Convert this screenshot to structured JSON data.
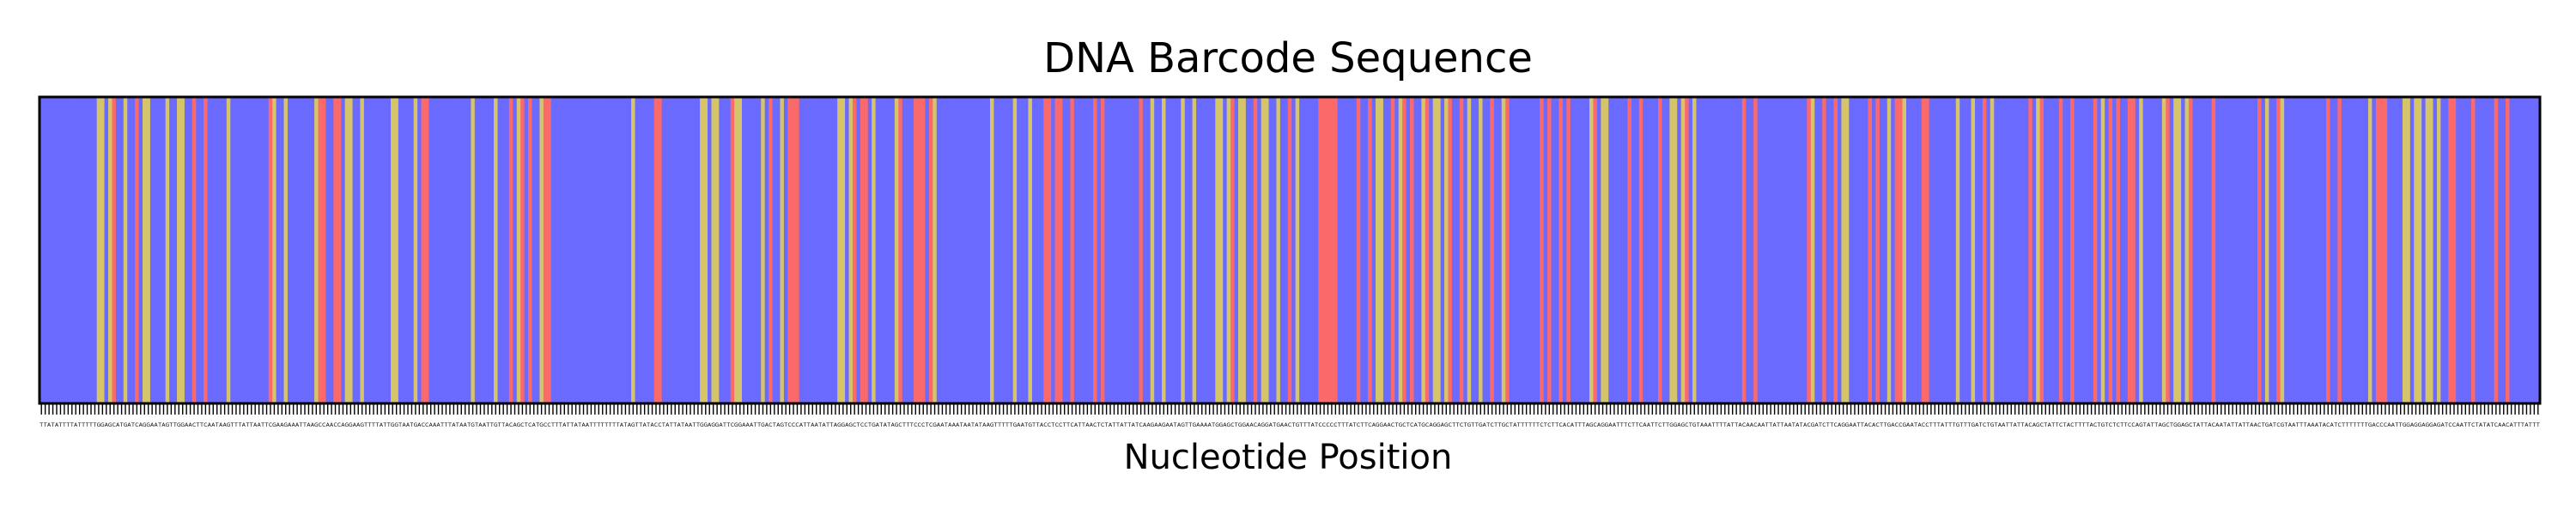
{
  "chart_data": {
    "type": "heatmap",
    "title": "DNA Barcode Sequence",
    "xlabel": "Nucleotide Position",
    "ylabel": "",
    "colors": {
      "A": "#6a6aff",
      "T": "#6a6aff",
      "C": "#fa6a6a",
      "G": "#d6c46a",
      "N": "#5cd46a"
    },
    "sequence": "TTATATTTTATTTTTGGAGCATGATCAGGAATAGTTGGAACTTCAATAAGTTTATTAATTCGAAGAAATTAAGCCAACCAGGAAGTTTTATTGGTAATGACCAAATTTATAATGTAATTGTTACAGCTCATGCCTTTATTATAATTTTTTTTATAGTTATACCTATTATAATTGGAGGATTCGGAAATTGACTAGTCCCATTAATATTAGGAGCTCCTGATATAGCTTTCCCTCGAATAAATAATATAAGTTTTTGAATGTTACCTCCTTCATTAACTCTATTATTATCAAGAAGAATAGTTGAAAATGGAGCTGGAACAGGATGAACTGTTTATCCCCCTTTATCTTCAGGAACTGCTCATGCAGGAGCTTCTGTTGATCTTGCTATTTTTTCTCTTCACATTTAGCAGGAATTTCTTCAATTCTTGGAGCTGTAAATTTTATTACAACAATTATTAATATACGATCTTCAGGAATTACACTTGACCGAATACCTTTATTTGTTTGATCTGTAATTATTACAGCTATTCTACTTTTACTGTCTCTTCCAGTATTAGCTGGAGCTATTACAATATTATTAACTGATCGTAATTTAAATACATCTTTTTTTGACCCAATTGGAGGAGGAGATCCAATTCTATATCAACATTTATTT"
  }
}
